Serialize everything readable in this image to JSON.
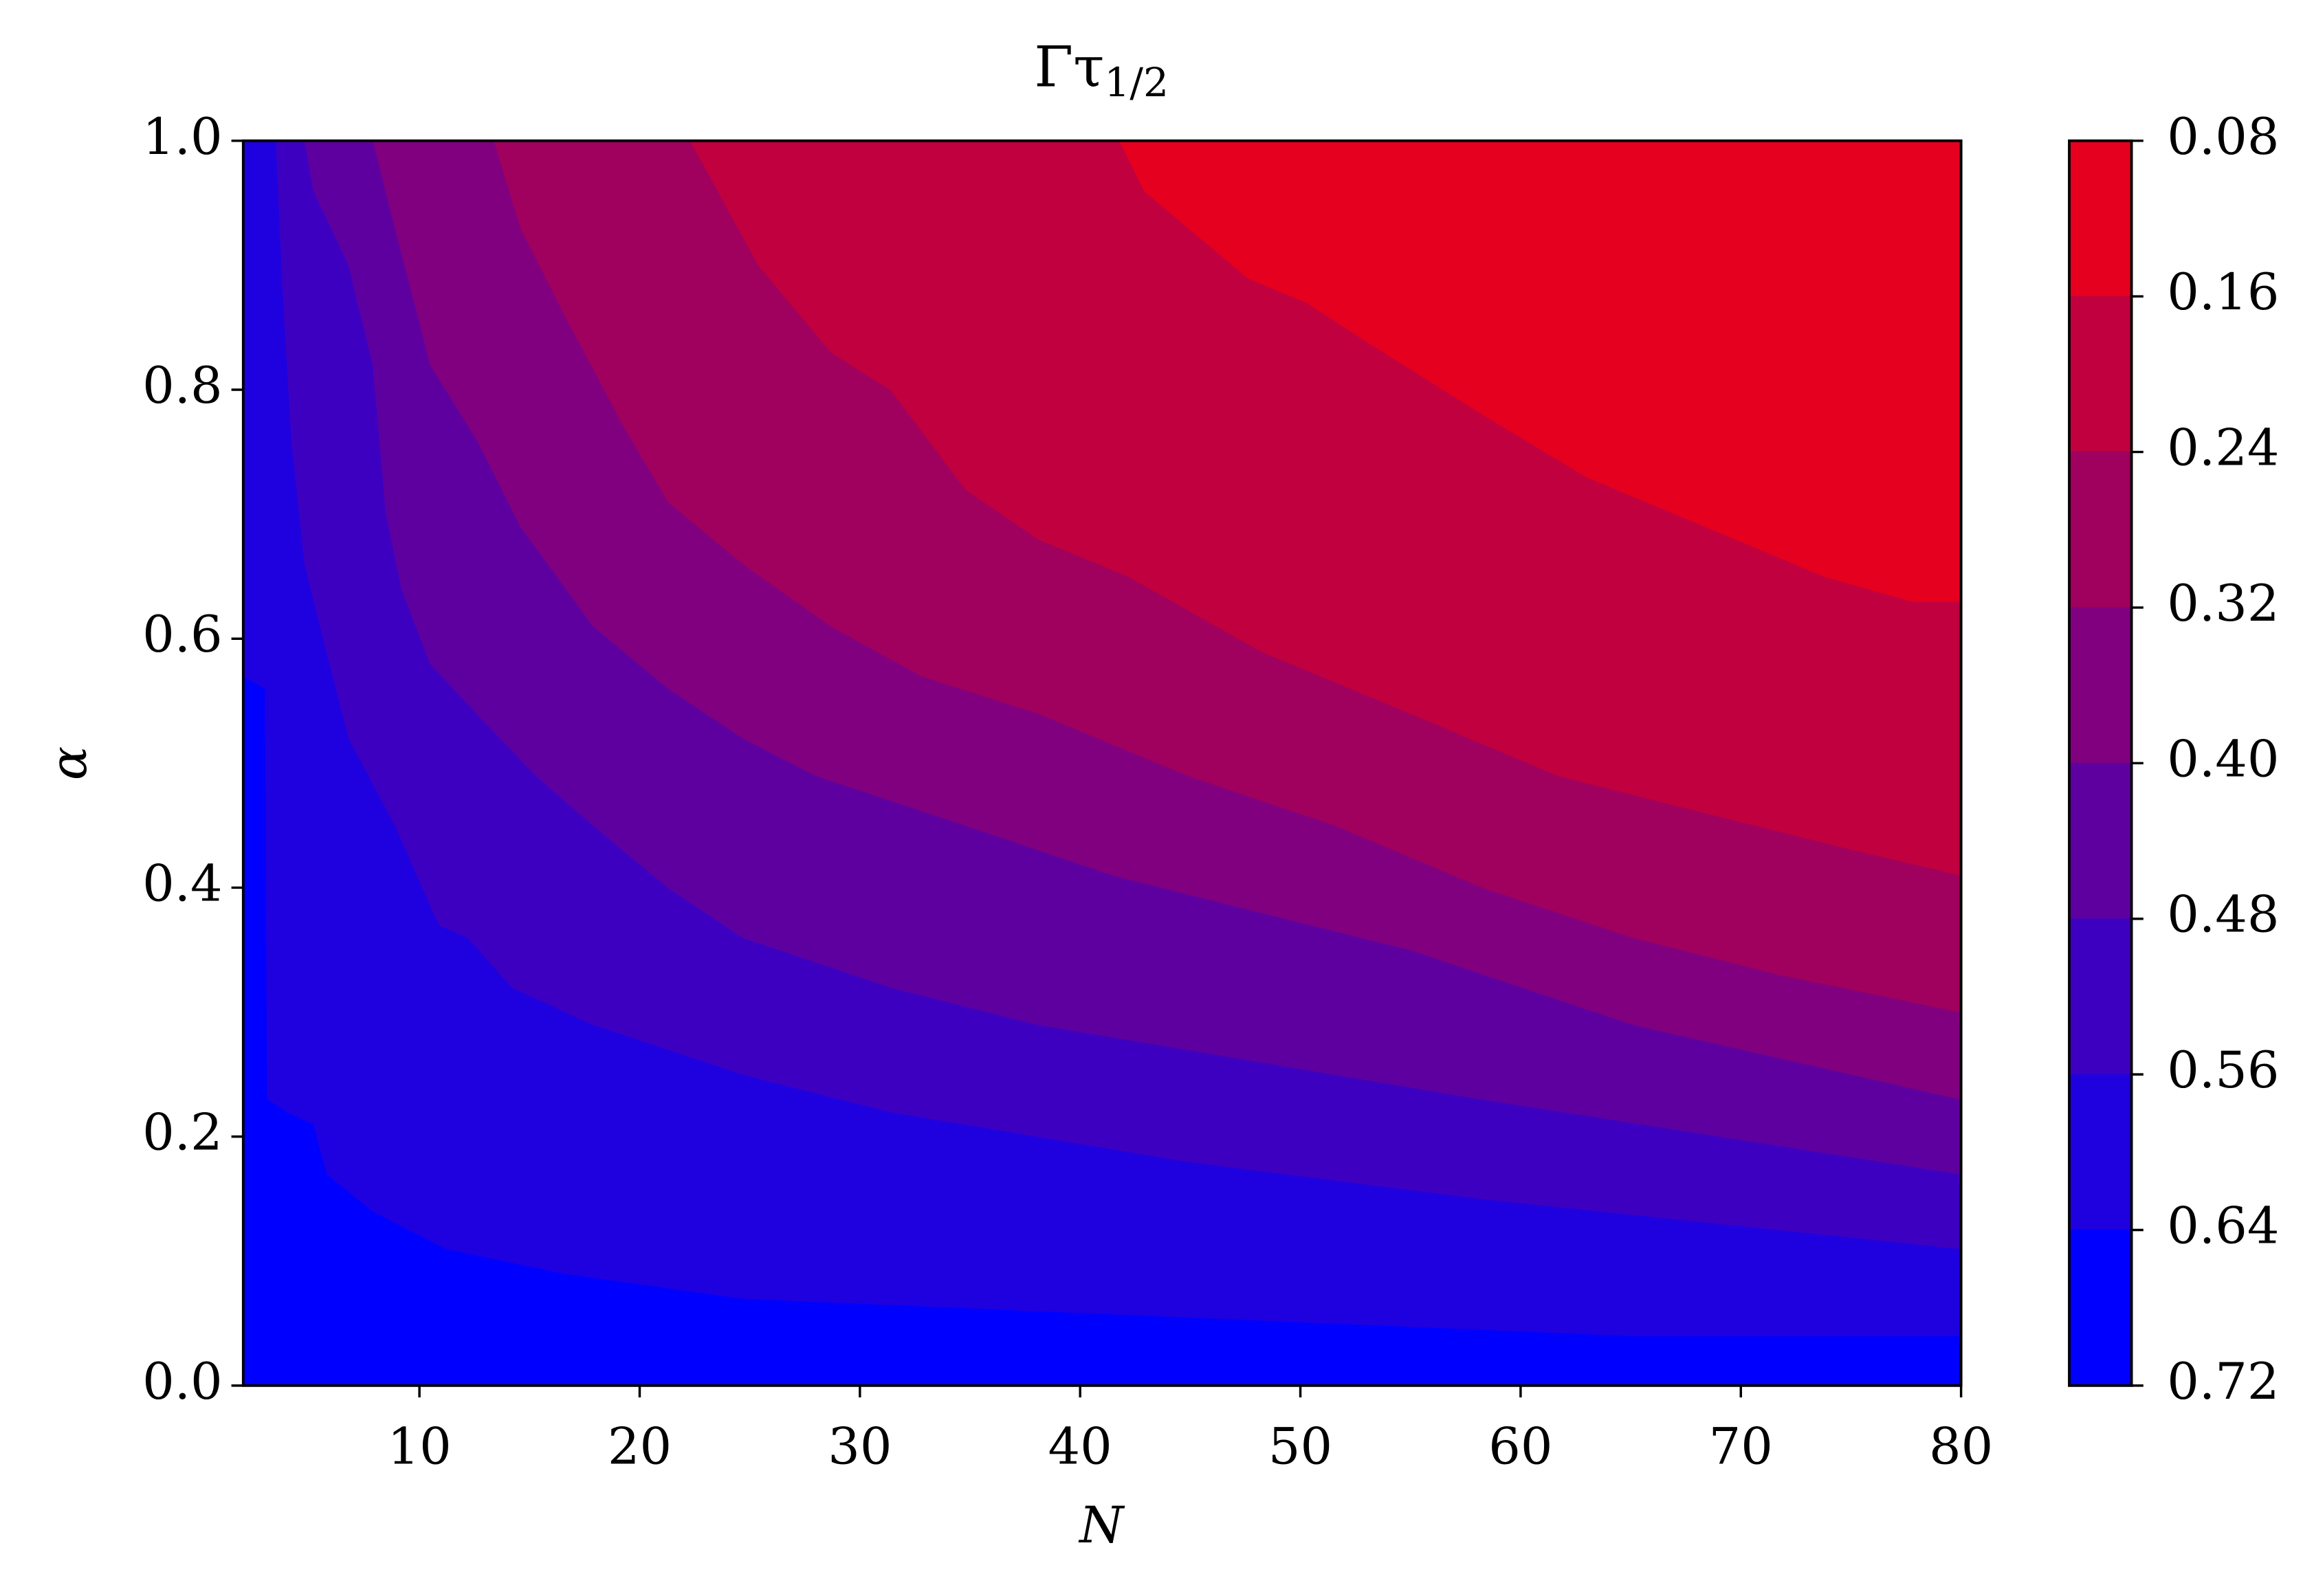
{
  "chart_data": {
    "type": "contourf",
    "title": "Γτ",
    "title_sub": "1/2",
    "xlabel": "N",
    "ylabel": "α",
    "xlim": [
      2,
      80
    ],
    "ylim": [
      0,
      1
    ],
    "xticks": [
      10,
      20,
      30,
      40,
      50,
      60,
      70,
      80
    ],
    "yticks": [
      {
        "value": 0,
        "label": "0.0"
      },
      {
        "value": 0.2,
        "label": "0.2"
      },
      {
        "value": 0.4,
        "label": "0.4"
      },
      {
        "value": 0.6,
        "label": "0.6"
      },
      {
        "value": 0.8,
        "label": "0.8"
      },
      {
        "value": 1,
        "label": "1.0"
      }
    ],
    "cbar_lim": [
      0.72,
      0.08
    ],
    "cbar_ticks": [
      0.08,
      0.16,
      0.24,
      0.32,
      {
        "value": 0.4,
        "label": "0.40"
      },
      0.48,
      0.56,
      0.64,
      0.72
    ],
    "colors": [
      "#e5001f",
      "#c0003f",
      "#a0005e",
      "#80007f",
      "#5e00a0",
      "#3e00c0",
      "#1f00df",
      "#0000ff"
    ],
    "boundaries": [
      {
        "N": [
          41.8,
          42.9,
          47.6,
          50.3,
          52.9,
          58.3,
          63.0,
          68.4,
          73.8,
          77.8,
          80
        ],
        "alpha": [
          1.0,
          0.96,
          0.89,
          0.87,
          0.84,
          0.78,
          0.73,
          0.69,
          0.65,
          0.63,
          0.63
        ]
      },
      {
        "N": [
          22.3,
          25.4,
          28.7,
          31.4,
          34.8,
          38.1,
          42.2,
          48.2,
          55.0,
          61.7,
          68.4,
          75.2,
          80
        ],
        "alpha": [
          1.0,
          0.9,
          0.83,
          0.8,
          0.72,
          0.68,
          0.65,
          0.59,
          0.54,
          0.49,
          0.46,
          0.43,
          0.41
        ]
      },
      {
        "N": [
          13.4,
          14.6,
          16.6,
          19.3,
          21.3,
          24.7,
          28.7,
          32.8,
          38.1,
          44.9,
          51.6,
          58.3,
          65.1,
          71.8,
          80
        ],
        "alpha": [
          1.0,
          0.93,
          0.86,
          0.77,
          0.71,
          0.66,
          0.61,
          0.57,
          0.54,
          0.49,
          0.45,
          0.4,
          0.36,
          0.33,
          0.3
        ]
      },
      {
        "N": [
          7.9,
          8.9,
          10.5,
          12.6,
          14.6,
          17.9,
          21.3,
          24.7,
          28.0,
          34.8,
          41.5,
          48.2,
          55.0,
          65.1,
          80
        ],
        "alpha": [
          1.0,
          0.93,
          0.82,
          0.76,
          0.69,
          0.61,
          0.56,
          0.52,
          0.49,
          0.45,
          0.41,
          0.38,
          0.35,
          0.29,
          0.23
        ]
      },
      {
        "N": [
          4.8,
          5.2,
          6.8,
          7.9,
          8.5,
          9.2,
          10.5,
          12.6,
          15.3,
          17.9,
          21.3,
          24.7,
          31.4,
          38.1,
          48.2,
          58.3,
          80
        ],
        "alpha": [
          1.0,
          0.96,
          0.9,
          0.82,
          0.7,
          0.64,
          0.58,
          0.54,
          0.49,
          0.45,
          0.4,
          0.36,
          0.32,
          0.29,
          0.26,
          0.23,
          0.17
        ]
      },
      {
        "N": [
          3.5,
          3.8,
          4.2,
          4.8,
          5.5,
          6.8,
          8.9,
          10.9,
          12.2,
          14.2,
          17.9,
          24.7,
          31.4,
          44.9,
          58.3,
          80
        ],
        "alpha": [
          1.0,
          0.88,
          0.76,
          0.66,
          0.61,
          0.52,
          0.45,
          0.37,
          0.36,
          0.32,
          0.29,
          0.25,
          0.22,
          0.18,
          0.15,
          0.11
        ]
      },
      {
        "N": [
          2,
          3.0,
          3.1,
          4.0,
          5.2,
          5.8,
          7.9,
          11.2,
          16.6,
          24.7,
          38.1,
          51.6,
          65.1,
          80
        ],
        "alpha": [
          0.57,
          0.56,
          0.23,
          0.22,
          0.21,
          0.17,
          0.14,
          0.11,
          0.09,
          0.07,
          0.06,
          0.05,
          0.04,
          0.04
        ]
      }
    ]
  }
}
